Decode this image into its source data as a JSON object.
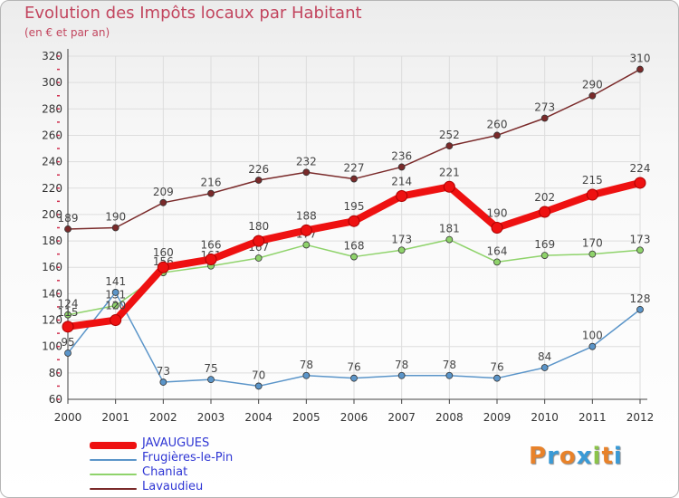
{
  "title": "Evolution des Impôts locaux par Habitant",
  "subtitle": "(en € et par an)",
  "logo": {
    "letters": [
      "P",
      "r",
      "o",
      "x",
      "i",
      "t",
      "i"
    ],
    "colors": [
      "#e8822a",
      "#3a9ad6",
      "#e8822a",
      "#3a9ad6",
      "#8bc34a",
      "#e8822a",
      "#3a9ad6"
    ]
  },
  "colors": {
    "title": "#c2455e",
    "axis": "#444444",
    "grid": "#dddddd",
    "minor_ticks": "#d03050",
    "legend_text": "#2f36d4"
  },
  "chart_data": {
    "type": "line",
    "title": "Evolution des Impôts locaux par Habitant",
    "subtitle": "(en € et par an)",
    "xlabel": "",
    "ylabel": "",
    "x": [
      "2000",
      "2001",
      "2002",
      "2003",
      "2004",
      "2005",
      "2006",
      "2007",
      "2008",
      "2009",
      "2010",
      "2011",
      "2012"
    ],
    "ylim": [
      60,
      320
    ],
    "yticks": [
      60,
      80,
      100,
      120,
      140,
      160,
      180,
      200,
      220,
      240,
      260,
      280,
      300,
      320
    ],
    "grid": true,
    "legend_position": "bottom-left",
    "series": [
      {
        "name": "Lavaudieu",
        "color": "#7a2a2a",
        "values": [
          189,
          190,
          209,
          216,
          226,
          232,
          227,
          236,
          252,
          260,
          273,
          290,
          310
        ]
      },
      {
        "name": "Chaniat",
        "color": "#8fd36b",
        "values": [
          124,
          131,
          156,
          161,
          167,
          177,
          168,
          173,
          181,
          164,
          169,
          170,
          173
        ]
      },
      {
        "name": "Frugières-le-Pin",
        "color": "#5b95c9",
        "values": [
          95,
          141,
          73,
          75,
          70,
          78,
          76,
          78,
          78,
          76,
          84,
          100,
          128
        ]
      },
      {
        "name": "JAVAUGUES",
        "color": "#ee1111",
        "values": [
          115,
          120,
          160,
          166,
          180,
          188,
          195,
          214,
          221,
          190,
          202,
          215,
          224
        ]
      }
    ],
    "legend_order": [
      "JAVAUGUES",
      "Frugières-le-Pin",
      "Chaniat",
      "Lavaudieu"
    ]
  }
}
